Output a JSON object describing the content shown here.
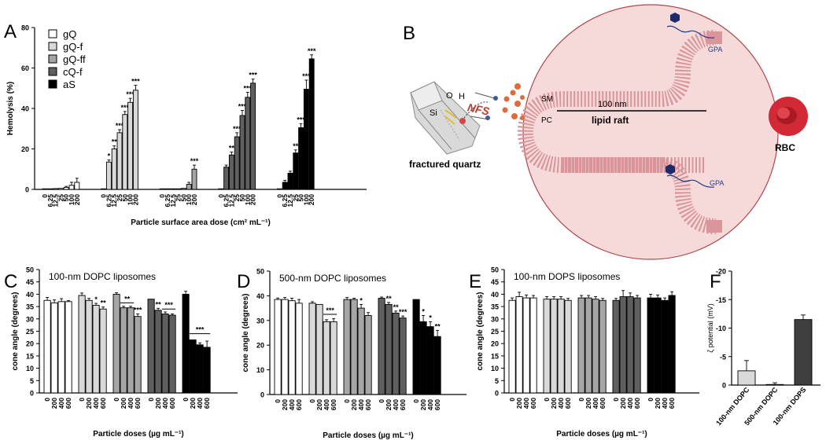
{
  "panel_letters": {
    "A": "A",
    "B": "B",
    "C": "C",
    "D": "D",
    "E": "E",
    "F": "F"
  },
  "palette": {
    "gQ": "#ffffff",
    "gQ-f": "#d9d9d9",
    "gQ-ff": "#a6a6a6",
    "cQ-f": "#5f5f5f",
    "aS": "#000000",
    "cell": "#f6dada",
    "membrane": "#d9959a",
    "rbc": "#d12a36"
  },
  "diagram": {
    "si": "Si",
    "o": "O",
    "h": "H",
    "nfs": "NFS",
    "sm": "SM",
    "pc": "PC",
    "size": "100 nm",
    "raft": "lipid raft",
    "gpa_top": "GPA",
    "gpa_bottom": "GPA",
    "quartz": "fractured quartz",
    "rbc": "RBC"
  },
  "chart_data": [
    {
      "id": "A",
      "type": "bar",
      "ylabel": "Hemolysis (%)",
      "xlabel": "Particle surface area dose (cm² mL⁻¹)",
      "ylim": [
        0,
        80
      ],
      "yticks": [
        0,
        20,
        40,
        60,
        80
      ],
      "legend_placement": "top-left",
      "categories": [
        "0",
        "6.25",
        "12.5",
        "25",
        "50",
        "100",
        "200"
      ],
      "series": [
        {
          "name": "gQ",
          "values": [
            0.3,
            0.3,
            0.4,
            0.5,
            1.0,
            2.0,
            3.5
          ],
          "errors": [
            0.2,
            0.2,
            0.2,
            0.3,
            0.5,
            1.5,
            2.0
          ],
          "sig": [
            "",
            "",
            "",
            "",
            "",
            "",
            ""
          ]
        },
        {
          "name": "gQ-f",
          "values": [
            0.3,
            13.5,
            20,
            28,
            37,
            43,
            49
          ],
          "errors": [
            0.2,
            1.0,
            1.5,
            1.5,
            1.5,
            2.0,
            2.5
          ],
          "sig": [
            "",
            "*",
            "**",
            "***",
            "***",
            "***",
            "***"
          ]
        },
        {
          "name": "gQ-ff",
          "values": [
            0.3,
            0.3,
            0.3,
            0.3,
            0.5,
            2.5,
            10
          ],
          "errors": [
            0.2,
            0.2,
            0.2,
            0.2,
            0.3,
            1.0,
            2.0
          ],
          "sig": [
            "",
            "",
            "",
            "",
            "",
            "",
            "***"
          ]
        },
        {
          "name": "cQ-f",
          "values": [
            0.3,
            11,
            17,
            26,
            36.5,
            45.5,
            52.5
          ],
          "errors": [
            0.2,
            1.0,
            1.5,
            2.0,
            2.5,
            2.5,
            2.0
          ],
          "sig": [
            "",
            "",
            "**",
            "***",
            "***",
            "***",
            "***"
          ]
        },
        {
          "name": "aS",
          "values": [
            0.3,
            3.5,
            8,
            18,
            30.5,
            49.5,
            64.5
          ],
          "errors": [
            0.2,
            1.0,
            1.0,
            1.5,
            2.0,
            4.5,
            2.0
          ],
          "sig": [
            "",
            "",
            "",
            "**",
            "***",
            "***",
            "***"
          ]
        }
      ]
    },
    {
      "id": "C",
      "type": "bar",
      "title": "100-nm DOPC liposomes",
      "ylabel": "cone angle (degrees)",
      "xlabel": "Particle doses (µg mL⁻¹)",
      "ylim": [
        0,
        50
      ],
      "yticks": [
        0,
        5,
        10,
        15,
        20,
        25,
        30,
        35,
        40,
        45,
        50
      ],
      "categories": [
        "0",
        "200",
        "400",
        "600"
      ],
      "series": [
        {
          "name": "gQ",
          "values": [
            37.5,
            36.5,
            37,
            37
          ],
          "errors": [
            1.2,
            1.2,
            1.2,
            0.4
          ],
          "sig": [
            "",
            "",
            "",
            ""
          ]
        },
        {
          "name": "gQ-f",
          "values": [
            39.5,
            37.5,
            35.5,
            34
          ],
          "errors": [
            1.0,
            0.8,
            0.8,
            0.8
          ],
          "sig": [
            "",
            "",
            "*",
            "**"
          ]
        },
        {
          "name": "gQ-ff",
          "values": [
            40,
            34.5,
            34.5,
            31
          ],
          "errors": [
            0.6,
            0.6,
            0.6,
            1.0
          ],
          "sig": [
            "",
            "",
            "",
            "***"
          ]
        },
        {
          "name": "cQ-f",
          "values": [
            38,
            33.5,
            32,
            31.5
          ],
          "errors": [
            0.3,
            0.8,
            0.8,
            0.5
          ],
          "sig": [
            "",
            "**",
            "",
            ""
          ]
        },
        {
          "name": "aS",
          "values": [
            40,
            21.5,
            19.5,
            18.5
          ],
          "errors": [
            1.2,
            0.3,
            0.8,
            2.5
          ],
          "sig": [
            "",
            "",
            "",
            ""
          ]
        }
      ],
      "brackets": [
        {
          "series": 2,
          "from": 1,
          "to": 2,
          "y": 36.5,
          "label": "**"
        },
        {
          "series": 3,
          "from": 2,
          "to": 3,
          "y": 34,
          "label": "***"
        },
        {
          "series": 4,
          "from": 1,
          "to": 3,
          "y": 24,
          "label": "***"
        }
      ]
    },
    {
      "id": "D",
      "type": "bar",
      "title": "500-nm DOPC liposomes",
      "ylabel": "cone angle (degrees)",
      "xlabel": "Particle doses (µg mL⁻¹)",
      "ylim": [
        0,
        50
      ],
      "yticks": [
        0,
        10,
        20,
        30,
        40,
        50
      ],
      "categories": [
        "0",
        "200",
        "400",
        "600"
      ],
      "series": [
        {
          "name": "gQ",
          "values": [
            38.5,
            38.5,
            38,
            37
          ],
          "errors": [
            0.6,
            0.8,
            1.0,
            1.5
          ],
          "sig": [
            "",
            "",
            "",
            ""
          ]
        },
        {
          "name": "gQ-f",
          "values": [
            37,
            36.5,
            29.5,
            29.5
          ],
          "errors": [
            0.6,
            0.3,
            0.8,
            1.2
          ],
          "sig": [
            "",
            "",
            "",
            ""
          ]
        },
        {
          "name": "gQ-ff",
          "values": [
            38.5,
            38.5,
            35,
            32
          ],
          "errors": [
            0.8,
            0.5,
            1.5,
            1.2
          ],
          "sig": [
            "",
            "",
            "*",
            ""
          ]
        },
        {
          "name": "cQ-f",
          "values": [
            39,
            36.5,
            33,
            31
          ],
          "errors": [
            0.5,
            0.8,
            0.8,
            0.8
          ],
          "sig": [
            "",
            "**",
            "**",
            "***"
          ]
        },
        {
          "name": "aS",
          "values": [
            38.5,
            29.5,
            27.5,
            23.5
          ],
          "errors": [
            0.3,
            2.5,
            2.0,
            2.5
          ],
          "sig": [
            "",
            "*",
            "*",
            "**"
          ]
        }
      ],
      "brackets": [
        {
          "series": 1,
          "from": 2,
          "to": 3,
          "y": 32.5,
          "label": "***"
        }
      ]
    },
    {
      "id": "E",
      "type": "bar",
      "title": "100-nm DOPS liposomes",
      "ylabel": "cone angle (degrees)",
      "xlabel": "Particle doses (µg mL⁻¹)",
      "ylim": [
        0,
        50
      ],
      "yticks": [
        0,
        5,
        10,
        15,
        20,
        25,
        30,
        35,
        40,
        45,
        50
      ],
      "categories": [
        "0",
        "200",
        "400",
        "600"
      ],
      "series": [
        {
          "name": "gQ",
          "values": [
            37.5,
            39,
            38.5,
            38.5
          ],
          "errors": [
            1.0,
            1.8,
            1.2,
            1.0
          ],
          "sig": [
            "",
            "",
            "",
            ""
          ]
        },
        {
          "name": "gQ-f",
          "values": [
            38,
            38,
            38,
            37.5
          ],
          "errors": [
            1.0,
            1.0,
            1.0,
            0.8
          ],
          "sig": [
            "",
            "",
            "",
            ""
          ]
        },
        {
          "name": "gQ-ff",
          "values": [
            38.5,
            38.5,
            38,
            37.5
          ],
          "errors": [
            1.0,
            1.0,
            1.0,
            0.8
          ],
          "sig": [
            "",
            "",
            "",
            ""
          ]
        },
        {
          "name": "cQ-f",
          "values": [
            37.5,
            39,
            39,
            38.5
          ],
          "errors": [
            0.8,
            2.5,
            1.5,
            1.0
          ],
          "sig": [
            "",
            "",
            "",
            ""
          ]
        },
        {
          "name": "aS",
          "values": [
            38.5,
            38.5,
            37.5,
            39.5
          ],
          "errors": [
            1.5,
            1.2,
            1.0,
            1.5
          ],
          "sig": [
            "",
            "",
            "",
            ""
          ]
        }
      ]
    },
    {
      "id": "F",
      "type": "bar",
      "ylabel": "ζ potential (mV)",
      "categories": [
        "100-nm DOPC",
        "500-nm DOPC",
        "100-nm DOPS"
      ],
      "values": [
        -2.5,
        -0.1,
        -11.5
      ],
      "errors": [
        1.8,
        0.3,
        0.8
      ],
      "colors": [
        "#d9d9d9",
        "#d9d9d9",
        "#3f3f3f"
      ],
      "ylim": [
        0,
        -20
      ],
      "yticks": [
        -20,
        -15,
        -10,
        -5,
        0
      ],
      "ytick_labels": [
        "-20",
        "-15",
        "-10",
        "-5",
        "0"
      ]
    }
  ]
}
